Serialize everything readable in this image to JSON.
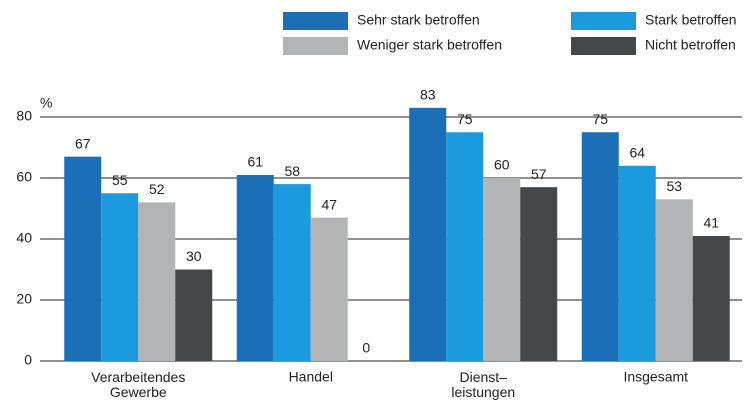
{
  "chart_data": {
    "type": "bar",
    "y_label": "%",
    "categories": [
      "Verarbeitendes\nGewerbe",
      "Handel",
      "Dienst–\nleistungen",
      "Insgesamt"
    ],
    "series": [
      {
        "name": "Sehr stark betroffen",
        "color": "#1a6fb7",
        "values": [
          67,
          61,
          83,
          75
        ]
      },
      {
        "name": "Stark betroffen",
        "color": "#1c9ade",
        "values": [
          55,
          58,
          75,
          64
        ]
      },
      {
        "name": "Weniger stark betroffen",
        "color": "#b2b4b6",
        "values": [
          52,
          47,
          60,
          53
        ]
      },
      {
        "name": "Nicht betroffen",
        "color": "#45484b",
        "values": [
          30,
          0,
          57,
          41
        ]
      }
    ],
    "ylim": [
      0,
      80
    ],
    "yticks": [
      0,
      20,
      40,
      60,
      80
    ],
    "grid": true,
    "legend": "top-right"
  }
}
